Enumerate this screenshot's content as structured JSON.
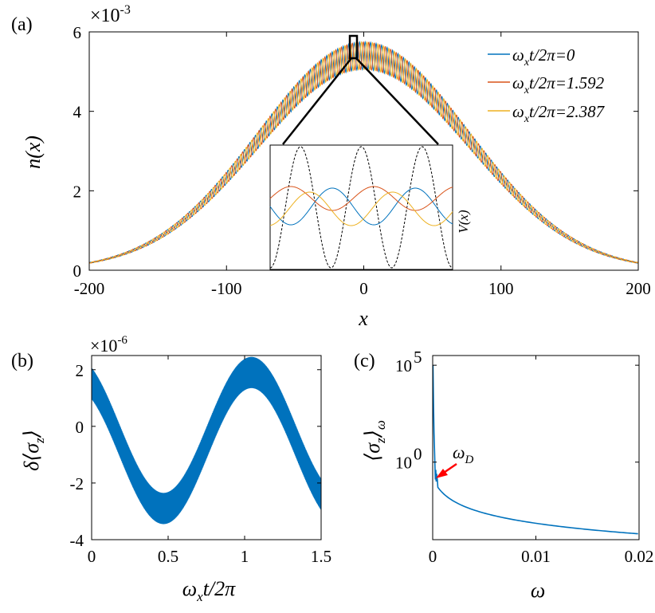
{
  "colors": {
    "blue": "#0072BD",
    "red": "#D95319",
    "yellow": "#EDB120",
    "axis": "#000000",
    "inset_potential": "#000000"
  },
  "chart_data": [
    {
      "panel": "(a)",
      "type": "line",
      "xlabel": "x",
      "ylabel": "n(x)",
      "xlim": [
        -200,
        200
      ],
      "ylim": [
        0,
        6
      ],
      "y_exponent": "×10^-3",
      "y_exponent_base": "×10",
      "y_exponent_power": "-3",
      "xticks": [
        "-200",
        "-100",
        "0",
        "100",
        "200"
      ],
      "yticks": [
        "0",
        "2",
        "4",
        "6"
      ],
      "envelope": {
        "peak": 5.4,
        "sigma": 77,
        "ripple_amplitude": 0.35,
        "ripple_period": 4
      },
      "series": [
        {
          "name": "ω_x t/2π=0",
          "label_sub": "x",
          "label_rest": "t/2π=0",
          "color": "#0072BD",
          "phase": 0
        },
        {
          "name": "ω_x t/2π=1.592",
          "label_sub": "x",
          "label_rest": "t/2π=1.592",
          "color": "#D95319",
          "phase": 2.1
        },
        {
          "name": "ω_x t/2π=2.387",
          "label_sub": "x",
          "label_rest": "t/2π=2.387",
          "color": "#EDB120",
          "phase": 4.2
        }
      ],
      "legend_position": "top-right",
      "inset": {
        "ylabel": "V(x)",
        "zoom_region_x": [
          -2,
          2
        ],
        "zoom_region_y": [
          5.4,
          5.9
        ],
        "potential_wells": 3
      }
    },
    {
      "panel": "(b)",
      "type": "line",
      "xlabel": "ω_x t/2π",
      "xlabel_sub": "x",
      "xlabel_rest": "t/2π",
      "ylabel": "δ⟨σ_z⟩",
      "xlim": [
        0,
        1.5
      ],
      "ylim": [
        -4,
        2.5
      ],
      "y_exponent": "×10^-6",
      "y_exponent_base": "×10",
      "y_exponent_power": "-6",
      "xticks": [
        "0",
        "0.5",
        "1",
        "1.5"
      ],
      "yticks": [
        "-4",
        "-2",
        "0",
        "2"
      ],
      "signal": {
        "offset": -0.5,
        "amplitude": 2.4,
        "period": 1.15,
        "phase_x_at_min": 0.47,
        "ripple_amplitude": 0.55
      },
      "series": [
        {
          "name": "δ⟨σ_z⟩",
          "color": "#0072BD"
        }
      ]
    },
    {
      "panel": "(c)",
      "type": "line",
      "xlabel": "ω",
      "ylabel": "⟨σ_z⟩_ω",
      "xlim": [
        0,
        0.02
      ],
      "yscale": "log",
      "ylim_log10": [
        -4,
        5.5
      ],
      "xticks": [
        "0",
        "0.01",
        "0.02"
      ],
      "yticks": [
        {
          "base": "10",
          "power": "5"
        },
        {
          "base": "10",
          "power": "0"
        }
      ],
      "annotation": {
        "text": "ω_D",
        "sub": "D",
        "main": "ω",
        "arrow_color": "#FF0000",
        "x": 0.0003,
        "y_log10": -0.8
      },
      "series": [
        {
          "name": "⟨σ_z⟩_ω",
          "color": "#0072BD"
        }
      ]
    }
  ]
}
